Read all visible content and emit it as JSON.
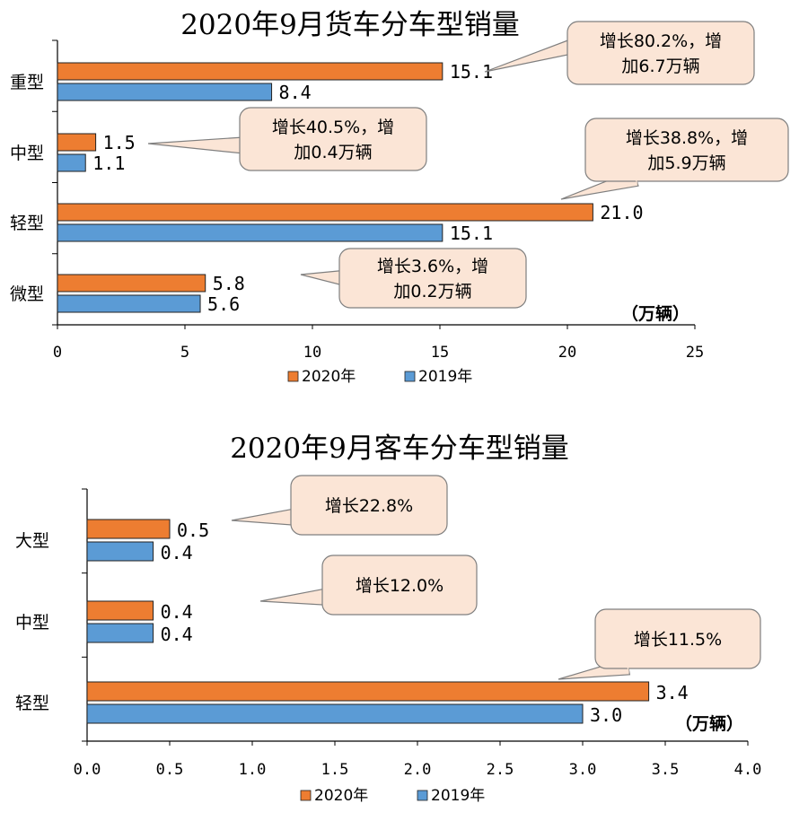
{
  "colors": {
    "s2020": "#ED7D31",
    "s2019": "#5B9BD5",
    "callout_fill": "#FBE5D6",
    "callout_stroke": "#7F7F7F"
  },
  "chart_data": [
    {
      "type": "bar",
      "orientation": "horizontal",
      "title": "2020年9月货车分车型销量",
      "categories": [
        "重型",
        "中型",
        "轻型",
        "微型"
      ],
      "series": [
        {
          "name": "2020年",
          "values": [
            15.1,
            1.5,
            21.0,
            5.8
          ],
          "labels": [
            "15.1",
            "1.5",
            "21.0",
            "5.8"
          ]
        },
        {
          "name": "2019年",
          "values": [
            8.4,
            1.1,
            15.1,
            5.6
          ],
          "labels": [
            "8.4",
            "1.1",
            "15.1",
            "5.6"
          ]
        }
      ],
      "xlim": [
        0,
        25
      ],
      "ticks": [
        "0",
        "5",
        "10",
        "15",
        "20",
        "25"
      ],
      "unit": "（万辆）",
      "callouts": [
        {
          "lines": [
            "增长80.2%，增",
            "加6.7万辆"
          ]
        },
        {
          "lines": [
            "增长40.5%，增",
            "加0.4万辆"
          ]
        },
        {
          "lines": [
            "增长38.8%，增",
            "加5.9万辆"
          ]
        },
        {
          "lines": [
            "增长3.6%，增",
            "加0.2万辆"
          ]
        }
      ],
      "legend": [
        "2020年",
        "2019年"
      ]
    },
    {
      "type": "bar",
      "orientation": "horizontal",
      "title": "2020年9月客车分车型销量",
      "categories": [
        "大型",
        "中型",
        "轻型"
      ],
      "series": [
        {
          "name": "2020年",
          "values": [
            0.5,
            0.4,
            3.4
          ],
          "labels": [
            "0.5",
            "0.4",
            "3.4"
          ]
        },
        {
          "name": "2019年",
          "values": [
            0.4,
            0.4,
            3.0
          ],
          "labels": [
            "0.4",
            "0.4",
            "3.0"
          ]
        }
      ],
      "xlim": [
        0,
        4
      ],
      "ticks": [
        "0.0",
        "0.5",
        "1.0",
        "1.5",
        "2.0",
        "2.5",
        "3.0",
        "3.5",
        "4.0"
      ],
      "unit": "（万辆）",
      "callouts": [
        {
          "lines": [
            "增长22.8%"
          ]
        },
        {
          "lines": [
            "增长12.0%"
          ]
        },
        {
          "lines": [
            "增长11.5%"
          ]
        }
      ],
      "legend": [
        "2020年",
        "2019年"
      ]
    }
  ]
}
